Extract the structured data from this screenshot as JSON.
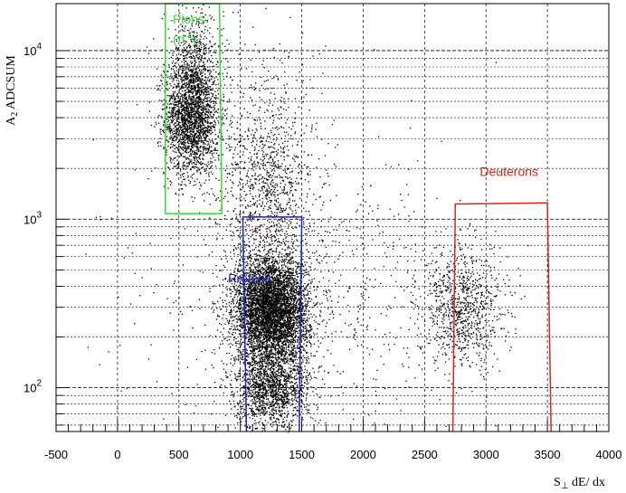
{
  "chart_data": {
    "type": "scatter",
    "title": "",
    "xlabel": "S⊥ dE/ dx",
    "ylabel": "A2 ADCSUM",
    "xlim": [
      -500,
      4000
    ],
    "ylim": [
      55,
      19000
    ],
    "y_scale": "log",
    "grid": true,
    "x_ticks": [
      "-500",
      "0",
      "500",
      "1000",
      "1500",
      "2000",
      "2500",
      "3000",
      "3500",
      "4000"
    ],
    "y_ticks": [
      {
        "base": "10",
        "exp": "2",
        "value": 100
      },
      {
        "base": "10",
        "exp": "3",
        "value": 1000
      },
      {
        "base": "10",
        "exp": "4",
        "value": 10000
      }
    ],
    "clusters": [
      {
        "name": "pions",
        "cx": 600,
        "cy": 4000,
        "sx": 110,
        "sy_log": 0.17,
        "n": 2200
      },
      {
        "name": "pions-tail",
        "cx": 620,
        "cy": 9000,
        "sx": 120,
        "sy_log": 0.15,
        "n": 500
      },
      {
        "name": "protons",
        "cx": 1250,
        "cy": 290,
        "sx": 150,
        "sy_log": 0.16,
        "n": 5200
      },
      {
        "name": "protons-low",
        "cx": 1250,
        "cy": 100,
        "sx": 150,
        "sy_log": 0.12,
        "n": 1500
      },
      {
        "name": "mid-band",
        "cx": 1230,
        "cy": 1600,
        "sx": 190,
        "sy_log": 0.35,
        "n": 1200
      },
      {
        "name": "deuterons",
        "cx": 2800,
        "cy": 300,
        "sx": 170,
        "sy_log": 0.17,
        "n": 900
      },
      {
        "name": "background",
        "cx": 1600,
        "cy": 350,
        "sx": 700,
        "sy_log": 0.45,
        "n": 700
      }
    ],
    "cuts": [
      {
        "name": "pions-cut",
        "label": "Pions",
        "sublabel": "(π⁺)",
        "color": "#33dd33",
        "polygon": [
          [
            390,
            19000
          ],
          [
            830,
            19000
          ],
          [
            850,
            1080
          ],
          [
            390,
            1080
          ],
          [
            390,
            19000
          ]
        ]
      },
      {
        "name": "protons-cut",
        "label": "Protons",
        "color": "#2222cc",
        "polygon": [
          [
            1050,
            55
          ],
          [
            1020,
            1030
          ],
          [
            1500,
            1030
          ],
          [
            1480,
            55
          ]
        ]
      },
      {
        "name": "deuterons-cut",
        "label": "Deuterons",
        "color": "#dd2222",
        "polygon": [
          [
            2730,
            55
          ],
          [
            2750,
            1230
          ],
          [
            3500,
            1250
          ],
          [
            3530,
            55
          ]
        ]
      }
    ],
    "annotations": [
      {
        "text": "Pions",
        "x": 450,
        "y": 14500,
        "color": "#33dd33"
      },
      {
        "text": "(π⁺)",
        "x": 450,
        "y": 11000,
        "color": "#33dd33"
      },
      {
        "text": "Protons",
        "x": 900,
        "y": 420,
        "color": "#2222cc"
      },
      {
        "text": "Deuterons",
        "x": 2950,
        "y": 1800,
        "color": "#dd2222"
      }
    ]
  }
}
